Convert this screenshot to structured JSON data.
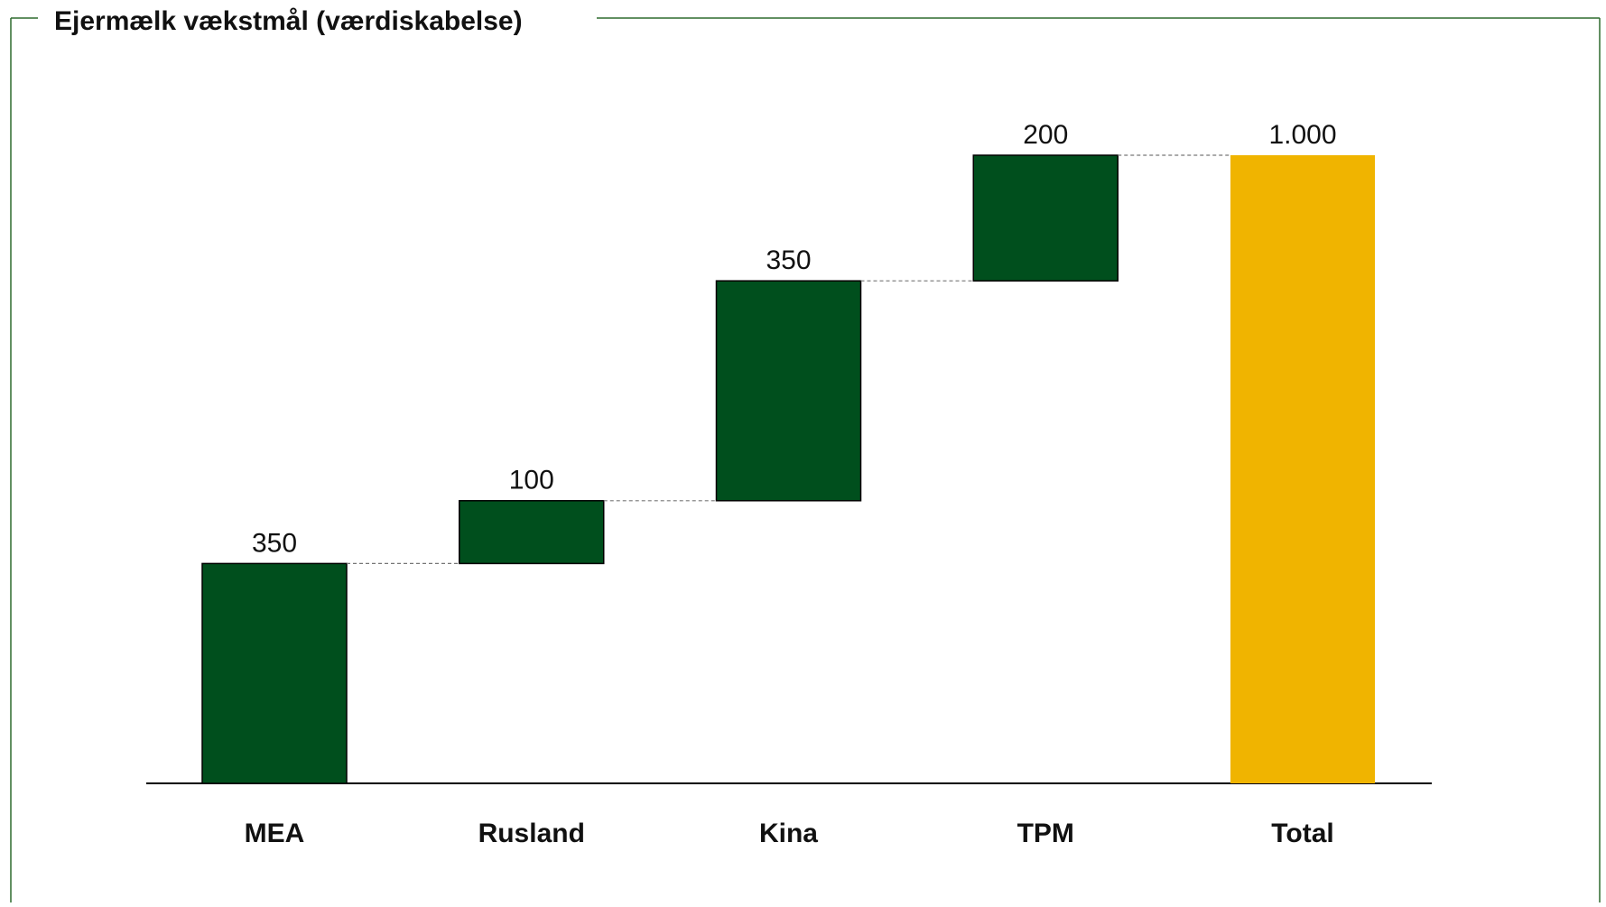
{
  "chart_data": {
    "type": "waterfall",
    "title": "Ejermælk vækstmål (værdiskabelse)",
    "categories": [
      "MEA",
      "Rusland",
      "Kina",
      "TPM",
      "Total"
    ],
    "values": [
      350,
      100,
      350,
      200,
      1000
    ],
    "value_labels": [
      "350",
      "100",
      "350",
      "200",
      "1.000"
    ],
    "is_total": [
      false,
      false,
      false,
      false,
      true
    ],
    "color": "#004f1d",
    "total_color": "#f0b400"
  }
}
